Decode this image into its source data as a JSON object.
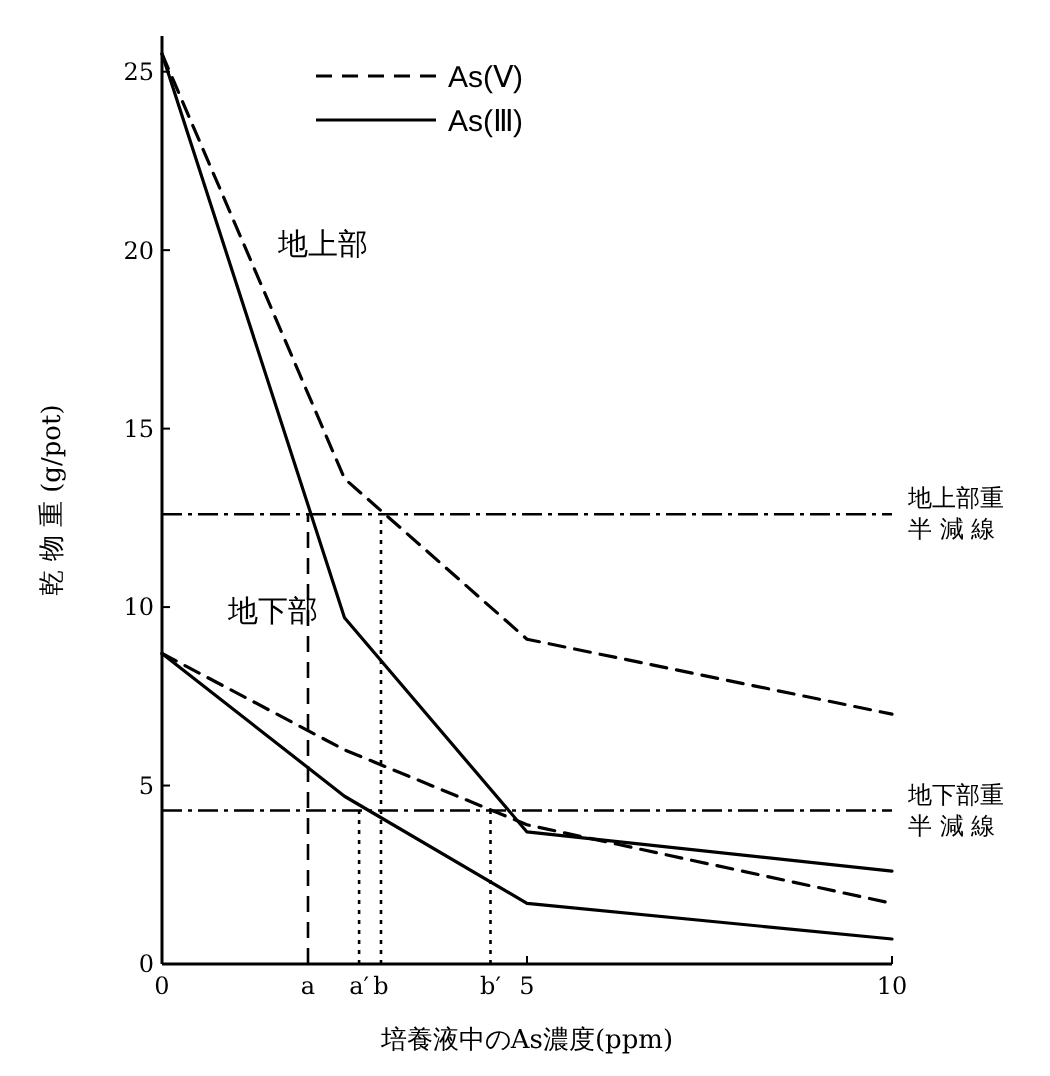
{
  "chart_data": {
    "type": "line",
    "xlabel": "培養液中のAs濃度(ppm)",
    "ylabel": "乾 物 重 (g/pot)",
    "x": [
      0,
      2.5,
      5,
      10
    ],
    "xlim": [
      0,
      10
    ],
    "xticks": [
      0,
      5,
      10
    ],
    "ylim": [
      0,
      26
    ],
    "yticks": [
      0,
      5,
      10,
      15,
      20,
      25
    ],
    "grid": false,
    "legend": "top",
    "marker": "none",
    "series": [
      {
        "name": "As(Ⅴ)",
        "color": "#000000",
        "line_style": "dashed",
        "values": [
          25.5,
          13.6,
          9.1,
          7.0
        ]
      },
      {
        "name": "As(Ⅲ)",
        "color": "#000000",
        "line_style": "solid",
        "values": [
          25.5,
          9.7,
          3.7,
          2.6
        ]
      },
      {
        "color": "#000000",
        "line_style": "dashed",
        "values": [
          8.7,
          6.0,
          3.9,
          1.7
        ]
      },
      {
        "color": "#000000",
        "line_style": "solid",
        "values": [
          8.7,
          4.7,
          1.7,
          0.7
        ]
      }
    ],
    "ref_lines": [
      {
        "axis": "y",
        "value": 12.6,
        "label": "地上部重半減線",
        "line_style": "dashdot"
      },
      {
        "axis": "y",
        "value": 4.3,
        "label": "地下部重半減線",
        "line_style": "dashdot"
      },
      {
        "axis": "x",
        "value": 2.0,
        "label": "a",
        "line_style": "dashed"
      },
      {
        "axis": "x",
        "value": 2.7,
        "label": "a′",
        "line_style": "dotted"
      },
      {
        "axis": "x",
        "value": 3.0,
        "label": "b",
        "line_style": "dotted"
      },
      {
        "axis": "x",
        "value": 4.5,
        "label": "b′",
        "line_style": "dotted"
      }
    ],
    "annotations": [
      "地上部",
      "地下部"
    ]
  }
}
